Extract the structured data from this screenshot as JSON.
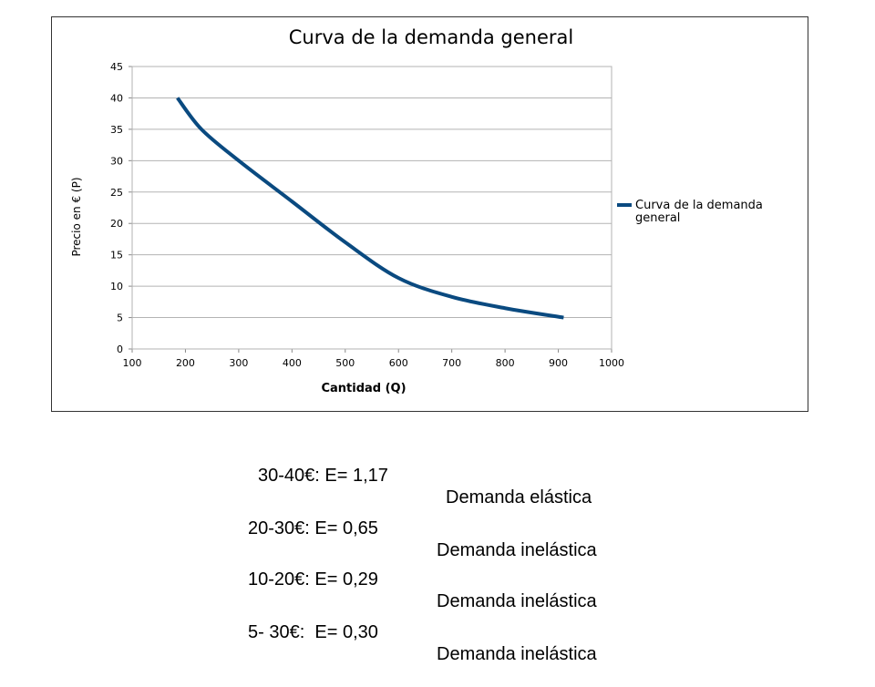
{
  "chart_data": {
    "type": "line",
    "title": "Curva de la demanda general",
    "xlabel": "Cantidad (Q)",
    "ylabel": "Precio en € (P)",
    "xlim": [
      100,
      1000
    ],
    "ylim": [
      0,
      45
    ],
    "xticks": [
      100,
      200,
      300,
      400,
      500,
      600,
      700,
      800,
      900,
      1000
    ],
    "yticks": [
      0,
      5,
      10,
      15,
      20,
      25,
      30,
      35,
      40,
      45
    ],
    "grid": true,
    "legend": "right",
    "series": [
      {
        "name": "Curva de la demanda general",
        "color": "#0a4a80",
        "x": [
          185,
          230,
          300,
          400,
          500,
          600,
          700,
          800,
          910
        ],
        "y": [
          40,
          35,
          30,
          23.5,
          17,
          11.3,
          8.3,
          6.5,
          5
        ]
      }
    ]
  },
  "elasticity": [
    {
      "range": "30-40€: E= 1,17",
      "label": "Demanda elástica"
    },
    {
      "range": "20-30€: E= 0,65",
      "label": "Demanda inelástica"
    },
    {
      "range": "10-20€: E= 0,29",
      "label": "Demanda inelástica"
    },
    {
      "range": "5- 30€:  E= 0,30",
      "label": "Demanda inelástica"
    }
  ]
}
